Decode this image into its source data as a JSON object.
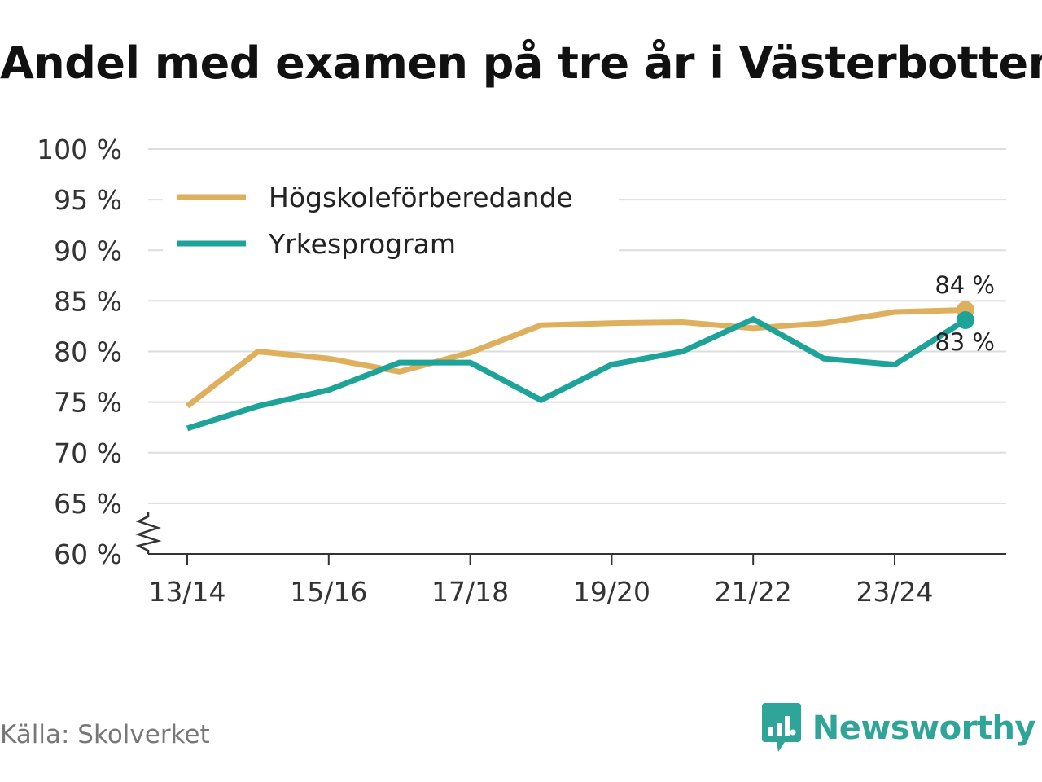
{
  "title": "Andel med examen på tre år i Västerbotten",
  "source": "Källa: Skolverket",
  "brand": {
    "name": "Newsworthy",
    "icon": "newsworthy-logo-icon",
    "color": "#2fa59a"
  },
  "chart_data": {
    "type": "line",
    "title": "Andel med examen på tre år i Västerbotten",
    "xlabel": "",
    "ylabel": "",
    "ylim": [
      60,
      100
    ],
    "y_axis_break": true,
    "y_ticks": [
      {
        "value": 100,
        "label": "100 %"
      },
      {
        "value": 95,
        "label": "95 %"
      },
      {
        "value": 90,
        "label": "90 %"
      },
      {
        "value": 85,
        "label": "85 %"
      },
      {
        "value": 80,
        "label": "80 %"
      },
      {
        "value": 75,
        "label": "75 %"
      },
      {
        "value": 70,
        "label": "70 %"
      },
      {
        "value": 65,
        "label": "65 %"
      },
      {
        "value": 60,
        "label": "60 %"
      }
    ],
    "categories": [
      "13/14",
      "14/15",
      "15/16",
      "16/17",
      "17/18",
      "18/19",
      "19/20",
      "20/21",
      "21/22",
      "22/23",
      "23/24",
      "24/25"
    ],
    "x_tick_labels": [
      "13/14",
      "15/16",
      "17/18",
      "19/20",
      "21/22",
      "23/24"
    ],
    "grid": true,
    "legend_position": "top-left",
    "series": [
      {
        "name": "Högskoleförberedande",
        "color": "#deb05e",
        "values": [
          74.6,
          80.0,
          79.3,
          78.0,
          79.9,
          82.6,
          82.8,
          82.9,
          82.3,
          82.8,
          83.9,
          84.1
        ],
        "end_label": "84 %"
      },
      {
        "name": "Yrkesprogram",
        "color": "#1ea398",
        "values": [
          72.4,
          74.6,
          76.2,
          78.9,
          78.9,
          75.2,
          78.7,
          80.0,
          83.2,
          79.3,
          78.7,
          83.1
        ],
        "end_label": "83 %"
      }
    ]
  }
}
